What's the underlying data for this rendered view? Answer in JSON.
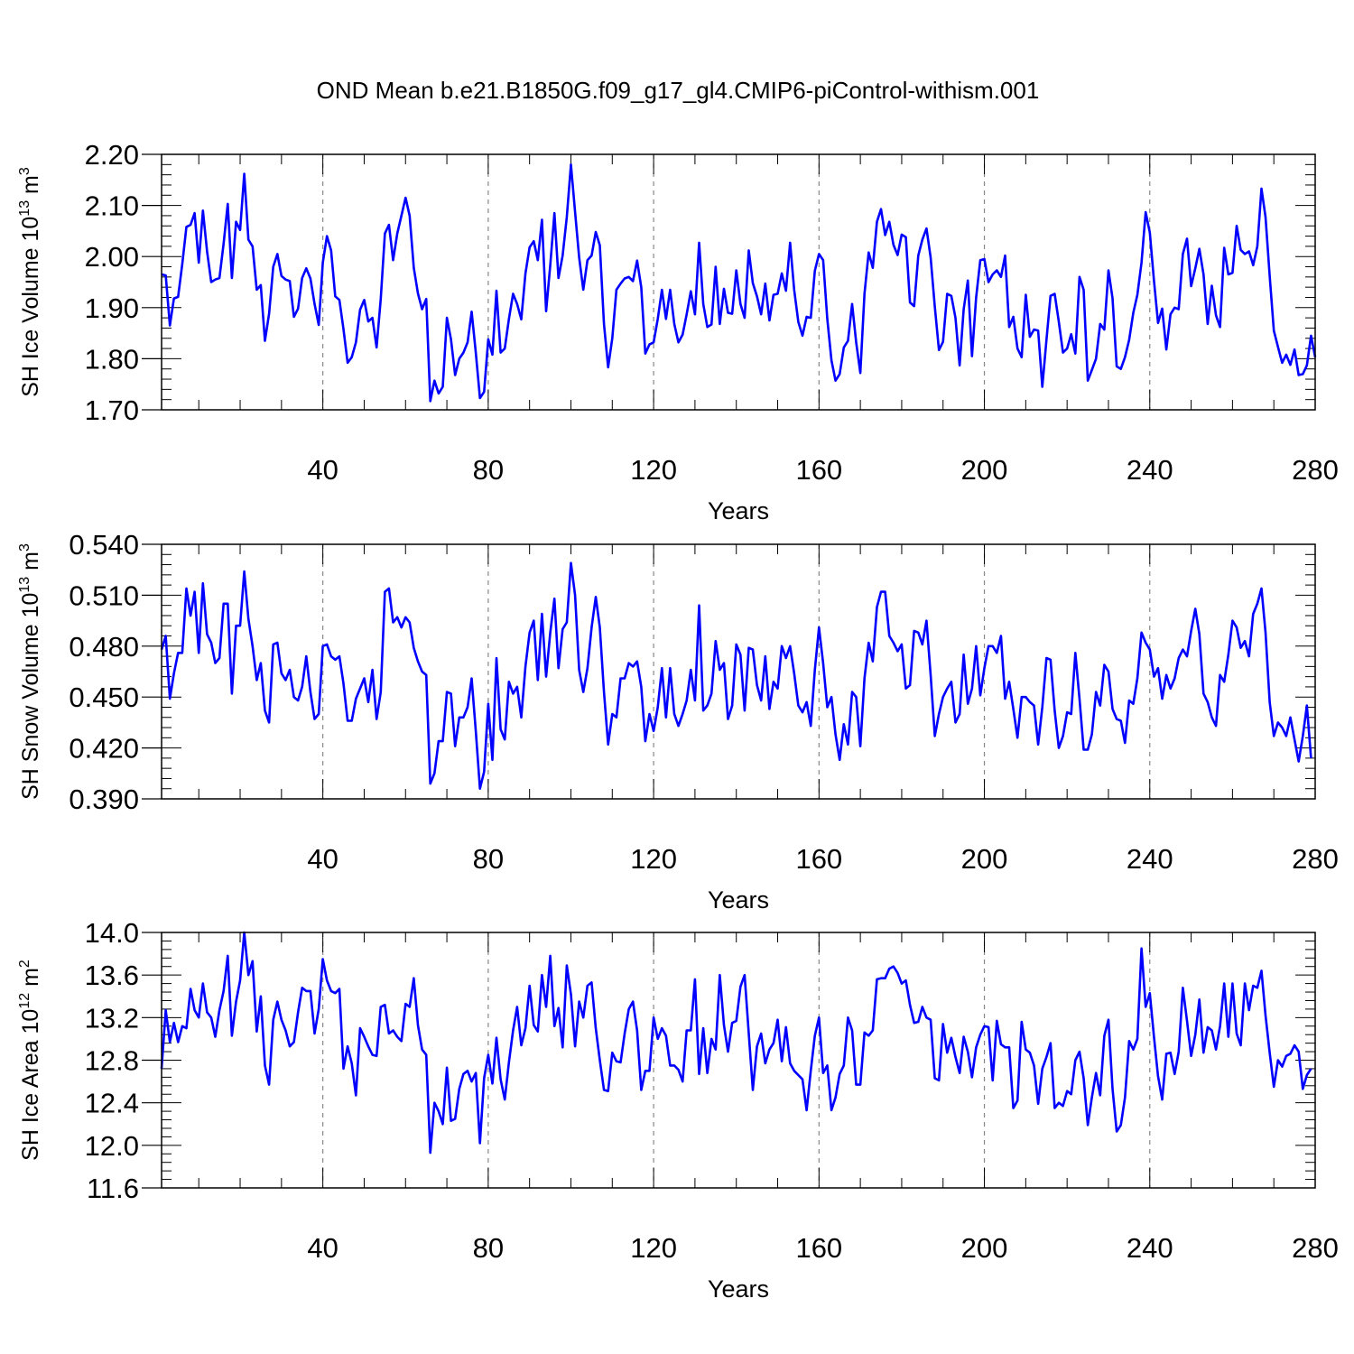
{
  "title": "OND Mean b.e21.B1850G.f09_g17_gl4.CMIP6-piControl-withism.001",
  "colors": {
    "line": "#0000ff",
    "axis": "#000000",
    "grid": "#888888"
  },
  "chart_data": [
    {
      "type": "line",
      "ylabel": "SH Ice Volume 10",
      "ylabel_sup": "13",
      "ylabel_unit": "m",
      "ylabel_unit_sup": "3",
      "xlabel": "Years",
      "xlim": [
        1,
        280
      ],
      "ylim": [
        1.7,
        2.2
      ],
      "xticks": [
        "40",
        "80",
        "120",
        "160",
        "200",
        "240",
        "280"
      ],
      "yticks": [
        "1.70",
        "1.80",
        "1.90",
        "2.00",
        "2.10",
        "2.20"
      ],
      "grid_x": [
        40,
        80,
        120,
        160,
        200,
        240
      ],
      "series": [
        {
          "values": [
            1.965,
            1.963,
            1.865,
            1.918,
            1.921,
            1.985,
            2.058,
            2.062,
            2.085,
            1.988,
            2.09,
            2.01,
            1.95,
            1.955,
            1.958,
            2.025,
            2.103,
            1.958,
            2.068,
            2.052,
            2.162,
            2.033,
            2.02,
            1.935,
            1.944,
            1.835,
            1.888,
            1.98,
            2.005,
            1.962,
            1.955,
            1.952,
            1.882,
            1.898,
            1.958,
            1.977,
            1.957,
            1.907,
            1.866,
            1.988,
            2.04,
            2.012,
            1.922,
            1.915,
            1.858,
            1.792,
            1.803,
            1.832,
            1.896,
            1.915,
            1.873,
            1.88,
            1.822,
            1.917,
            2.045,
            2.062,
            1.993,
            2.045,
            2.08,
            2.115,
            2.08,
            1.978,
            1.928,
            1.897,
            1.917,
            1.717,
            1.757,
            1.732,
            1.745,
            1.88,
            1.838,
            1.768,
            1.8,
            1.812,
            1.832,
            1.892,
            1.812,
            1.723,
            1.735,
            1.838,
            1.808,
            1.933,
            1.812,
            1.82,
            1.878,
            1.927,
            1.907,
            1.877,
            1.967,
            2.018,
            2.03,
            1.993,
            2.072,
            1.893,
            1.983,
            2.085,
            1.958,
            2.002,
            2.077,
            2.18,
            2.087,
            1.998,
            1.935,
            1.993,
            2.002,
            2.048,
            2.022,
            1.868,
            1.783,
            1.84,
            1.935,
            1.947,
            1.957,
            1.96,
            1.952,
            1.992,
            1.94,
            1.81,
            1.828,
            1.832,
            1.878,
            1.935,
            1.878,
            1.935,
            1.868,
            1.832,
            1.847,
            1.887,
            1.932,
            1.887,
            2.027,
            1.907,
            1.862,
            1.867,
            1.98,
            1.868,
            1.937,
            1.89,
            1.888,
            1.973,
            1.907,
            1.88,
            2.012,
            1.948,
            1.922,
            1.887,
            1.947,
            1.875,
            1.925,
            1.927,
            1.967,
            1.933,
            2.027,
            1.935,
            1.872,
            1.845,
            1.882,
            1.88,
            1.972,
            2.005,
            1.993,
            1.878,
            1.797,
            1.757,
            1.77,
            1.822,
            1.835,
            1.907,
            1.832,
            1.772,
            1.927,
            2.008,
            1.978,
            2.068,
            2.093,
            2.042,
            2.068,
            2.023,
            2.003,
            2.043,
            2.038,
            1.91,
            1.903,
            2.002,
            2.033,
            2.055,
            1.998,
            1.902,
            1.817,
            1.833,
            1.927,
            1.923,
            1.88,
            1.787,
            1.897,
            1.953,
            1.805,
            1.92,
            1.993,
            1.995,
            1.95,
            1.965,
            1.973,
            1.96,
            2.002,
            1.862,
            1.882,
            1.82,
            1.803,
            1.925,
            1.843,
            1.857,
            1.855,
            1.745,
            1.837,
            1.923,
            1.927,
            1.872,
            1.812,
            1.82,
            1.848,
            1.81,
            1.96,
            1.935,
            1.757,
            1.778,
            1.8,
            1.868,
            1.857,
            1.973,
            1.918,
            1.785,
            1.78,
            1.803,
            1.837,
            1.89,
            1.925,
            1.988,
            2.087,
            2.047,
            1.953,
            1.87,
            1.898,
            1.818,
            1.887,
            1.9,
            1.897,
            2.005,
            2.035,
            1.942,
            1.977,
            2.015,
            1.965,
            1.868,
            1.943,
            1.885,
            1.862,
            2.017,
            1.965,
            1.968,
            2.06,
            2.013,
            2.005,
            2.01,
            1.983,
            2.02,
            2.133,
            2.077,
            1.962,
            1.855,
            1.823,
            1.792,
            1.808,
            1.788,
            1.818,
            1.768,
            1.77,
            1.787,
            1.845,
            1.803
          ]
        }
      ]
    },
    {
      "type": "line",
      "ylabel": "SH Snow Volume 10",
      "ylabel_sup": "13",
      "ylabel_unit": "m",
      "ylabel_unit_sup": "3",
      "xlabel": "Years",
      "xlim": [
        1,
        280
      ],
      "ylim": [
        0.39,
        0.54
      ],
      "xticks": [
        "40",
        "80",
        "120",
        "160",
        "200",
        "240",
        "280"
      ],
      "yticks": [
        "0.390",
        "0.420",
        "0.450",
        "0.480",
        "0.510",
        "0.540"
      ],
      "grid_x": [
        40,
        80,
        120,
        160,
        200,
        240
      ],
      "series": [
        {
          "values": [
            0.478,
            0.486,
            0.449,
            0.464,
            0.476,
            0.476,
            0.514,
            0.498,
            0.512,
            0.476,
            0.517,
            0.487,
            0.482,
            0.47,
            0.473,
            0.505,
            0.505,
            0.452,
            0.492,
            0.492,
            0.524,
            0.496,
            0.48,
            0.46,
            0.47,
            0.442,
            0.435,
            0.481,
            0.482,
            0.464,
            0.46,
            0.466,
            0.45,
            0.448,
            0.456,
            0.474,
            0.453,
            0.437,
            0.44,
            0.48,
            0.481,
            0.474,
            0.472,
            0.474,
            0.458,
            0.436,
            0.436,
            0.449,
            0.455,
            0.461,
            0.447,
            0.466,
            0.437,
            0.453,
            0.512,
            0.514,
            0.494,
            0.497,
            0.491,
            0.497,
            0.494,
            0.479,
            0.471,
            0.465,
            0.463,
            0.399,
            0.405,
            0.424,
            0.424,
            0.453,
            0.452,
            0.421,
            0.438,
            0.438,
            0.444,
            0.461,
            0.43,
            0.396,
            0.406,
            0.446,
            0.413,
            0.473,
            0.431,
            0.425,
            0.459,
            0.452,
            0.456,
            0.438,
            0.468,
            0.488,
            0.495,
            0.46,
            0.499,
            0.462,
            0.488,
            0.508,
            0.467,
            0.49,
            0.494,
            0.529,
            0.51,
            0.466,
            0.453,
            0.467,
            0.491,
            0.509,
            0.491,
            0.453,
            0.422,
            0.44,
            0.438,
            0.461,
            0.461,
            0.47,
            0.468,
            0.471,
            0.456,
            0.424,
            0.44,
            0.43,
            0.444,
            0.467,
            0.438,
            0.467,
            0.44,
            0.433,
            0.44,
            0.448,
            0.466,
            0.448,
            0.504,
            0.442,
            0.445,
            0.452,
            0.483,
            0.466,
            0.47,
            0.437,
            0.445,
            0.481,
            0.475,
            0.442,
            0.479,
            0.478,
            0.457,
            0.448,
            0.474,
            0.443,
            0.459,
            0.455,
            0.48,
            0.473,
            0.48,
            0.464,
            0.445,
            0.441,
            0.447,
            0.433,
            0.466,
            0.491,
            0.47,
            0.444,
            0.45,
            0.428,
            0.413,
            0.434,
            0.422,
            0.453,
            0.45,
            0.421,
            0.461,
            0.482,
            0.471,
            0.503,
            0.512,
            0.512,
            0.486,
            0.482,
            0.477,
            0.481,
            0.455,
            0.457,
            0.489,
            0.488,
            0.481,
            0.495,
            0.463,
            0.427,
            0.44,
            0.45,
            0.455,
            0.459,
            0.435,
            0.44,
            0.475,
            0.446,
            0.455,
            0.48,
            0.451,
            0.467,
            0.48,
            0.48,
            0.476,
            0.486,
            0.449,
            0.459,
            0.443,
            0.426,
            0.45,
            0.45,
            0.447,
            0.445,
            0.422,
            0.444,
            0.473,
            0.472,
            0.442,
            0.42,
            0.427,
            0.441,
            0.44,
            0.476,
            0.449,
            0.419,
            0.419,
            0.428,
            0.453,
            0.445,
            0.469,
            0.465,
            0.443,
            0.437,
            0.436,
            0.423,
            0.448,
            0.446,
            0.461,
            0.488,
            0.482,
            0.478,
            0.462,
            0.467,
            0.449,
            0.463,
            0.455,
            0.461,
            0.473,
            0.478,
            0.474,
            0.489,
            0.502,
            0.487,
            0.452,
            0.447,
            0.438,
            0.433,
            0.463,
            0.459,
            0.475,
            0.495,
            0.491,
            0.479,
            0.483,
            0.474,
            0.499,
            0.505,
            0.514,
            0.488,
            0.447,
            0.427,
            0.435,
            0.432,
            0.427,
            0.438,
            0.425,
            0.412,
            0.427,
            0.445,
            0.414
          ]
        }
      ]
    },
    {
      "type": "line",
      "ylabel": "SH Ice Area 10",
      "ylabel_sup": "12",
      "ylabel_unit": "m",
      "ylabel_unit_sup": "2",
      "xlabel": "Years",
      "xlim": [
        1,
        280
      ],
      "ylim": [
        11.6,
        14.0
      ],
      "xticks": [
        "40",
        "80",
        "120",
        "160",
        "200",
        "240",
        "280"
      ],
      "yticks": [
        "11.6",
        "12.0",
        "12.4",
        "12.8",
        "13.2",
        "13.6",
        "14.0"
      ],
      "grid_x": [
        40,
        80,
        120,
        160,
        200,
        240
      ],
      "series": [
        {
          "values": [
            12.72,
            13.27,
            12.97,
            13.15,
            12.97,
            13.12,
            13.1,
            13.47,
            13.27,
            13.2,
            13.52,
            13.25,
            13.2,
            13.02,
            13.27,
            13.45,
            13.78,
            13.03,
            13.35,
            13.55,
            14.0,
            13.6,
            13.73,
            13.07,
            13.4,
            12.75,
            12.57,
            13.18,
            13.35,
            13.18,
            13.08,
            12.93,
            12.97,
            13.25,
            13.48,
            13.45,
            13.45,
            13.05,
            13.28,
            13.75,
            13.55,
            13.45,
            13.43,
            13.47,
            12.72,
            12.93,
            12.77,
            12.47,
            13.1,
            13.02,
            12.93,
            12.85,
            12.84,
            13.3,
            13.32,
            13.05,
            13.08,
            13.02,
            12.98,
            13.33,
            13.3,
            13.57,
            13.13,
            12.9,
            12.85,
            11.93,
            12.4,
            12.32,
            12.2,
            12.73,
            12.23,
            12.25,
            12.53,
            12.67,
            12.7,
            12.6,
            12.68,
            12.02,
            12.63,
            12.85,
            12.58,
            13.01,
            12.62,
            12.43,
            12.78,
            13.08,
            13.3,
            12.94,
            13.1,
            13.5,
            13.13,
            13.07,
            13.6,
            13.3,
            13.78,
            13.12,
            13.29,
            12.92,
            13.69,
            13.42,
            12.93,
            13.35,
            13.2,
            13.5,
            13.53,
            13.1,
            12.8,
            12.52,
            12.51,
            12.87,
            12.79,
            12.78,
            13.05,
            13.28,
            13.35,
            13.08,
            12.52,
            12.7,
            12.7,
            13.2,
            13.0,
            13.1,
            13.03,
            12.75,
            12.75,
            12.71,
            12.6,
            13.08,
            13.08,
            13.56,
            12.67,
            13.1,
            12.68,
            13.0,
            12.9,
            13.6,
            13.13,
            12.88,
            13.15,
            13.17,
            13.49,
            13.6,
            13.05,
            12.52,
            12.93,
            13.05,
            12.77,
            12.9,
            12.96,
            13.18,
            12.79,
            13.11,
            12.77,
            12.7,
            12.66,
            12.62,
            12.33,
            12.7,
            13.03,
            13.2,
            12.68,
            12.75,
            12.33,
            12.45,
            12.67,
            12.75,
            13.2,
            13.08,
            12.57,
            12.57,
            13.06,
            13.03,
            13.08,
            13.56,
            13.57,
            13.57,
            13.66,
            13.68,
            13.62,
            13.52,
            13.55,
            13.32,
            13.15,
            13.16,
            13.3,
            13.2,
            13.18,
            12.63,
            12.61,
            13.14,
            12.87,
            13.01,
            12.83,
            12.68,
            13.02,
            12.88,
            12.64,
            12.92,
            13.04,
            13.12,
            13.11,
            12.61,
            13.17,
            12.95,
            12.92,
            12.92,
            12.35,
            12.42,
            13.16,
            12.9,
            12.87,
            12.75,
            12.39,
            12.72,
            12.83,
            12.96,
            12.35,
            12.4,
            12.37,
            12.51,
            12.48,
            12.8,
            12.88,
            12.63,
            12.19,
            12.45,
            12.68,
            12.47,
            13.03,
            13.18,
            12.53,
            12.13,
            12.19,
            12.45,
            12.98,
            12.9,
            13.0,
            13.85,
            13.3,
            13.43,
            13.02,
            12.65,
            12.43,
            12.86,
            12.87,
            12.67,
            12.88,
            13.48,
            13.17,
            12.84,
            13.04,
            13.37,
            12.87,
            13.11,
            13.08,
            12.9,
            13.12,
            13.52,
            13.02,
            13.52,
            13.05,
            12.94,
            13.52,
            13.27,
            13.5,
            13.48,
            13.64,
            13.22,
            12.87,
            12.55,
            12.8,
            12.74,
            12.84,
            12.86,
            12.94,
            12.88,
            12.53,
            12.66,
            12.72
          ]
        }
      ]
    }
  ]
}
